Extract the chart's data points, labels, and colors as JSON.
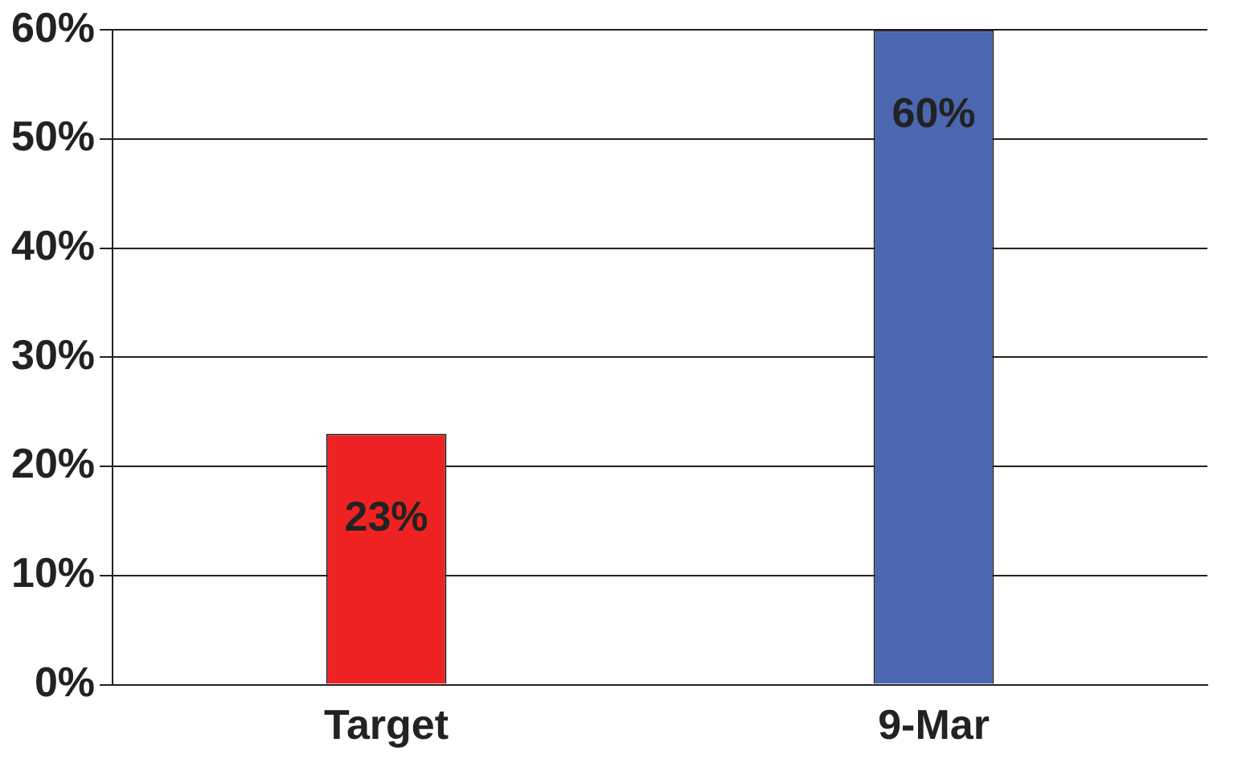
{
  "chart_data": {
    "type": "bar",
    "categories": [
      "Target",
      "9-Mar"
    ],
    "values": [
      23,
      60
    ],
    "colors": [
      "#ee2222",
      "#4a67b0"
    ],
    "value_labels": [
      "23%",
      "60%"
    ],
    "ylim": [
      0,
      60
    ],
    "yticks": [
      {
        "value": 0,
        "label": "0%"
      },
      {
        "value": 10,
        "label": "10%"
      },
      {
        "value": 20,
        "label": "20%"
      },
      {
        "value": 30,
        "label": "30%"
      },
      {
        "value": 40,
        "label": "40%"
      },
      {
        "value": 50,
        "label": "50%"
      },
      {
        "value": 60,
        "label": "60%"
      }
    ],
    "grid": "y",
    "legend": false
  }
}
